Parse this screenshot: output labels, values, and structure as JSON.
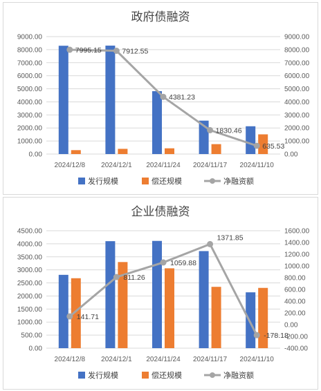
{
  "colors": {
    "issue": "#4472c4",
    "repay": "#ed7d31",
    "net": "#a5a5a5",
    "grid": "#d9d9d9",
    "text": "#595959"
  },
  "chart_data": [
    {
      "type": "bar",
      "title": "政府债融资",
      "categories": [
        "2024/12/8",
        "2024/12/1",
        "2024/11/24",
        "2024/11/17",
        "2024/11/10"
      ],
      "series": [
        {
          "name": "发行规模",
          "type": "bar",
          "axis": "left",
          "values": [
            8300,
            8310,
            4820,
            2560,
            2130
          ]
        },
        {
          "name": "偿还规模",
          "type": "bar",
          "axis": "left",
          "values": [
            300,
            400,
            440,
            760,
            1510
          ]
        },
        {
          "name": "净融资额",
          "type": "line",
          "axis": "right",
          "values": [
            7995.15,
            7912.55,
            4381.23,
            1830.46,
            635.53
          ]
        }
      ],
      "data_labels": [
        "7995.15",
        "7912.55",
        "4381.23",
        "1830.46",
        "635.53"
      ],
      "ylim": [
        0,
        9000
      ],
      "y2lim": [
        0,
        9000
      ],
      "yticks": [
        "0.00",
        "1000.00",
        "2000.00",
        "3000.00",
        "4000.00",
        "5000.00",
        "6000.00",
        "7000.00",
        "8000.00",
        "9000.00"
      ],
      "y2ticks": [
        "0.00",
        "1000.00",
        "2000.00",
        "3000.00",
        "4000.00",
        "5000.00",
        "6000.00",
        "7000.00",
        "8000.00",
        "9000.00"
      ],
      "grid": true,
      "legend": "bottom"
    },
    {
      "type": "bar",
      "title": "企业债融资",
      "categories": [
        "2024/12/8",
        "2024/12/1",
        "2024/11/24",
        "2024/11/17",
        "2024/11/10"
      ],
      "series": [
        {
          "name": "发行规模",
          "type": "bar",
          "axis": "left",
          "values": [
            2810,
            4100,
            4110,
            3720,
            2140
          ]
        },
        {
          "name": "偿还规模",
          "type": "bar",
          "axis": "left",
          "values": [
            2680,
            3300,
            3060,
            2350,
            2310
          ]
        },
        {
          "name": "净融资额",
          "type": "line",
          "axis": "right",
          "values": [
            141.71,
            811.26,
            1059.88,
            1371.85,
            -178.18
          ]
        }
      ],
      "data_labels": [
        "141.71",
        "811.26",
        "1059.88",
        "1371.85",
        "-178.18"
      ],
      "ylim": [
        0,
        4500
      ],
      "y2lim": [
        -400,
        1600
      ],
      "yticks": [
        "0.00",
        "500.00",
        "1000.00",
        "1500.00",
        "2000.00",
        "2500.00",
        "3000.00",
        "3500.00",
        "4000.00",
        "4500.00"
      ],
      "y2ticks": [
        "-400.00",
        "-200.00",
        "0.00",
        "200.00",
        "400.00",
        "600.00",
        "800.00",
        "1000.00",
        "1200.00",
        "1400.00",
        "1600.00"
      ],
      "grid": true,
      "legend": "bottom"
    }
  ]
}
